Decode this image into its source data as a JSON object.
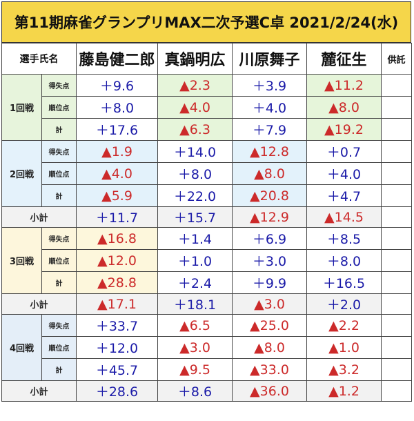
{
  "title": "第11期麻雀グランプリMAX二次予選C卓 2021/2/24(水)",
  "header": {
    "label": "選手氏名",
    "players": [
      "藤島健二郎",
      "真鍋明広",
      "川原舞子",
      "麓征生"
    ],
    "kyotaku": "供託"
  },
  "sub_labels": {
    "score": "得失点",
    "rank": "順位点",
    "total": "計"
  },
  "subtotal_label": "小計",
  "rounds": [
    {
      "label": "1回戦",
      "score": [
        "9.6",
        "2.3",
        "3.9",
        "11.2"
      ],
      "score_sign": [
        "pos",
        "neg",
        "pos",
        "neg"
      ],
      "rank": [
        "8.0",
        "4.0",
        "4.0",
        "8.0"
      ],
      "rank_sign": [
        "pos",
        "neg",
        "pos",
        "neg"
      ],
      "total": [
        "17.6",
        "6.3",
        "7.9",
        "19.2"
      ],
      "total_sign": [
        "pos",
        "neg",
        "pos",
        "neg"
      ]
    },
    {
      "label": "2回戦",
      "score": [
        "1.9",
        "14.0",
        "12.8",
        "0.7"
      ],
      "score_sign": [
        "neg",
        "pos",
        "neg",
        "pos"
      ],
      "rank": [
        "4.0",
        "8.0",
        "8.0",
        "4.0"
      ],
      "rank_sign": [
        "neg",
        "pos",
        "neg",
        "pos"
      ],
      "total": [
        "5.9",
        "22.0",
        "20.8",
        "4.7"
      ],
      "total_sign": [
        "neg",
        "pos",
        "neg",
        "pos"
      ],
      "subtotal": [
        "11.7",
        "15.7",
        "12.9",
        "14.5"
      ],
      "subtotal_sign": [
        "pos",
        "pos",
        "neg",
        "neg"
      ]
    },
    {
      "label": "3回戦",
      "score": [
        "16.8",
        "1.4",
        "6.9",
        "8.5"
      ],
      "score_sign": [
        "neg",
        "pos",
        "pos",
        "pos"
      ],
      "rank": [
        "12.0",
        "1.0",
        "3.0",
        "8.0"
      ],
      "rank_sign": [
        "neg",
        "pos",
        "pos",
        "pos"
      ],
      "total": [
        "28.8",
        "2.4",
        "9.9",
        "16.5"
      ],
      "total_sign": [
        "neg",
        "pos",
        "pos",
        "pos"
      ],
      "subtotal": [
        "17.1",
        "18.1",
        "3.0",
        "2.0"
      ],
      "subtotal_sign": [
        "neg",
        "pos",
        "neg",
        "pos"
      ]
    },
    {
      "label": "4回戦",
      "score": [
        "33.7",
        "6.5",
        "25.0",
        "2.2"
      ],
      "score_sign": [
        "pos",
        "neg",
        "neg",
        "neg"
      ],
      "rank": [
        "12.0",
        "3.0",
        "8.0",
        "1.0"
      ],
      "rank_sign": [
        "pos",
        "neg",
        "neg",
        "neg"
      ],
      "total": [
        "45.7",
        "9.5",
        "33.0",
        "3.2"
      ],
      "total_sign": [
        "pos",
        "neg",
        "neg",
        "neg"
      ],
      "subtotal": [
        "28.6",
        "8.6",
        "36.0",
        "1.2"
      ],
      "subtotal_sign": [
        "pos",
        "pos",
        "neg",
        "neg"
      ]
    }
  ]
}
